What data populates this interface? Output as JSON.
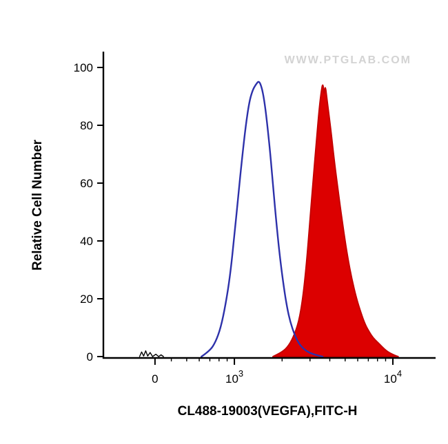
{
  "chart_data": {
    "type": "area",
    "title": "",
    "xlabel": "CL488-19003(VEGFA),FITC-H",
    "ylabel": "Relative Cell Number",
    "watermark": "WWW.PTGLAB.COM",
    "x_scale": "biexponential-log",
    "ylim": [
      0,
      100
    ],
    "grid": false,
    "legend_position": "none",
    "y_ticks": [
      0,
      20,
      40,
      60,
      80,
      100
    ],
    "x_major_ticks": [
      {
        "base": "0",
        "exp": "",
        "value": 0
      },
      {
        "base": "10",
        "exp": "3",
        "value": 1000
      },
      {
        "base": "10",
        "exp": "4",
        "value": 10000
      }
    ],
    "x_minor_tick_values": [
      400,
      500,
      600,
      700,
      800,
      900,
      2000,
      3000,
      4000,
      5000,
      6000,
      7000,
      8000,
      9000
    ],
    "axis_color": "#000000",
    "series": [
      {
        "name": "vegfa-stained-filled-peak",
        "kind": "filled-area",
        "color": "#c40000",
        "fill": "#dc0000",
        "stroke_width": 2,
        "smooth": true,
        "peak": {
          "x": 3620,
          "y": 95
        },
        "points": [
          [
            1750,
            0
          ],
          [
            1950,
            1.2
          ],
          [
            2150,
            3
          ],
          [
            2350,
            6.5
          ],
          [
            2550,
            12
          ],
          [
            2700,
            20
          ],
          [
            2850,
            32
          ],
          [
            3000,
            47
          ],
          [
            3150,
            62
          ],
          [
            3300,
            75
          ],
          [
            3420,
            85
          ],
          [
            3520,
            91
          ],
          [
            3620,
            95
          ],
          [
            3680,
            90
          ],
          [
            3740,
            94
          ],
          [
            3820,
            90
          ],
          [
            3920,
            85
          ],
          [
            4050,
            79
          ],
          [
            4200,
            71
          ],
          [
            4400,
            62
          ],
          [
            4650,
            52
          ],
          [
            4900,
            43
          ],
          [
            5200,
            34
          ],
          [
            5500,
            27
          ],
          [
            5900,
            20
          ],
          [
            6300,
            15
          ],
          [
            6700,
            11
          ],
          [
            7100,
            8.5
          ],
          [
            7500,
            6.5
          ],
          [
            8000,
            5
          ],
          [
            8500,
            3.5
          ],
          [
            9000,
            2.2
          ],
          [
            9600,
            1.2
          ],
          [
            10300,
            0.4
          ],
          [
            10800,
            0
          ]
        ]
      },
      {
        "name": "control-open-peak",
        "kind": "line",
        "color": "#2d31aa",
        "fill": "none",
        "stroke_width": 2.4,
        "smooth": true,
        "peak": {
          "x": 1430,
          "y": 95.5
        },
        "points": [
          [
            620,
            0
          ],
          [
            700,
            2
          ],
          [
            760,
            5
          ],
          [
            820,
            10
          ],
          [
            880,
            18
          ],
          [
            940,
            28
          ],
          [
            1000,
            42
          ],
          [
            1060,
            56
          ],
          [
            1120,
            69
          ],
          [
            1180,
            80
          ],
          [
            1240,
            88
          ],
          [
            1300,
            92
          ],
          [
            1360,
            94
          ],
          [
            1430,
            95.5
          ],
          [
            1490,
            93
          ],
          [
            1540,
            89
          ],
          [
            1600,
            82
          ],
          [
            1680,
            71
          ],
          [
            1760,
            58
          ],
          [
            1850,
            45
          ],
          [
            1950,
            33
          ],
          [
            2050,
            24
          ],
          [
            2150,
            17
          ],
          [
            2250,
            12
          ],
          [
            2400,
            7.5
          ],
          [
            2550,
            4.5
          ],
          [
            2750,
            2.5
          ],
          [
            3000,
            1.2
          ],
          [
            3300,
            0.5
          ],
          [
            3600,
            0
          ]
        ]
      },
      {
        "name": "near-zero-events",
        "kind": "line",
        "color": "#000000",
        "fill": "none",
        "stroke_width": 1.4,
        "smooth": false,
        "points": [
          [
            -380,
            0
          ],
          [
            -330,
            1.6
          ],
          [
            -280,
            0.2
          ],
          [
            -230,
            2
          ],
          [
            -180,
            0.2
          ],
          [
            -120,
            1.4
          ],
          [
            -60,
            0
          ],
          [
            20,
            0.8
          ],
          [
            90,
            0
          ],
          [
            150,
            0.6
          ],
          [
            210,
            0
          ]
        ]
      }
    ]
  }
}
